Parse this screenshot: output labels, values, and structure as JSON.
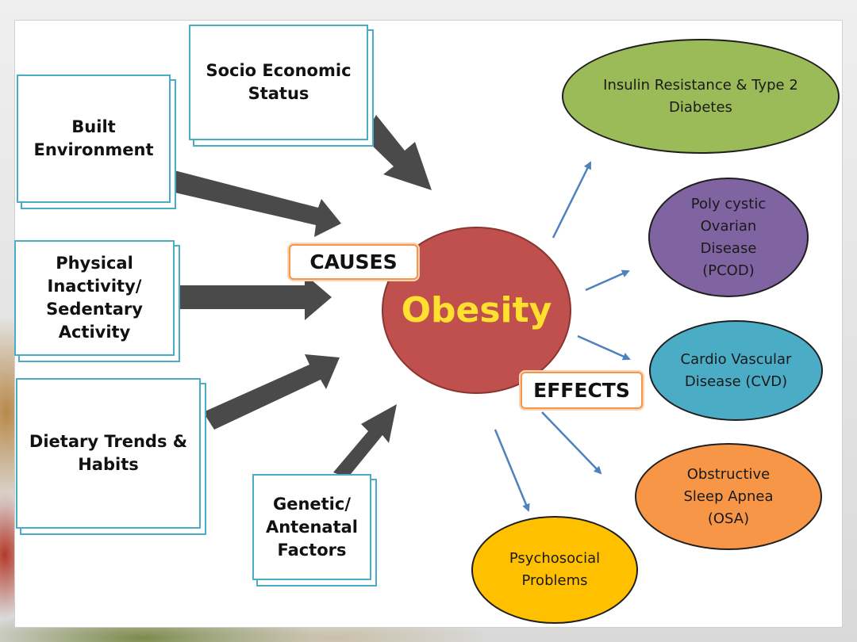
{
  "center": {
    "label": "Obesity",
    "fill": "#c0504d",
    "text_color": "#ffe02e"
  },
  "causes_label": "CAUSES",
  "effects_label": "EFFECTS",
  "causes": [
    {
      "id": "socio",
      "label": "Socio Economic\nStatus"
    },
    {
      "id": "built",
      "label": "Built\nEnvironment"
    },
    {
      "id": "physical",
      "label": "Physical\nInactivity/\nSedentary\nActivity"
    },
    {
      "id": "dietary",
      "label": "Dietary Trends &\nHabits"
    },
    {
      "id": "genetic",
      "label": "Genetic/\nAntenatal\nFactors"
    }
  ],
  "effects": [
    {
      "id": "insulin",
      "label": "Insulin Resistance & Type 2\nDiabetes",
      "color": "#9bbb59"
    },
    {
      "id": "pcod",
      "label": "Poly cystic\nOvarian\nDisease\n(PCOD)",
      "color": "#8064a2"
    },
    {
      "id": "cvd",
      "label": "Cardio Vascular\nDisease (CVD)",
      "color": "#4bacc6"
    },
    {
      "id": "osa",
      "label": "Obstructive\nSleep Apnea\n(OSA)",
      "color": "#f79646"
    },
    {
      "id": "psychosocial",
      "label": "Psychosocial\nProblems",
      "color": "#ffc000"
    }
  ],
  "colors": {
    "cause_border": "#4bacc6",
    "cause_arrow": "#4a4a4a",
    "effect_arrow": "#4f81bd",
    "tag_border": "#f79646"
  }
}
